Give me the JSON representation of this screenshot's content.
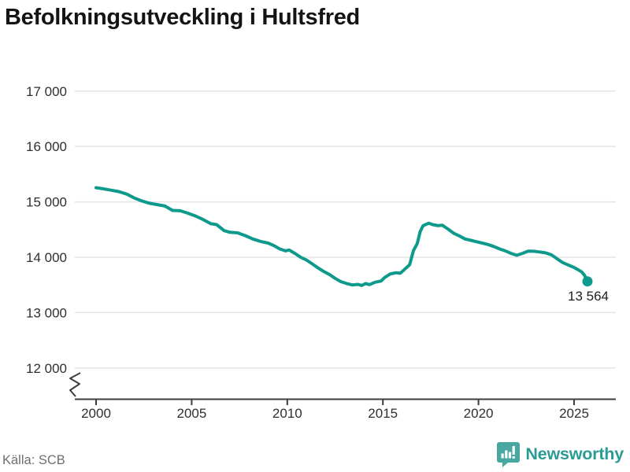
{
  "page": {
    "title": "Befolkningsutveckling i Hultsfred"
  },
  "footer": {
    "source": "Källa: SCB",
    "brand": "Newsworthy"
  },
  "colors": {
    "line": "#0d9a8c",
    "grid": "#e4e4e4",
    "axis": "#3d3d3d",
    "tick_label": "#2f2f2f",
    "end_label": "#1e1e1e",
    "brand_icon": "#48a7a0",
    "brand_text": "#2b9c95"
  },
  "chart_data": {
    "type": "line",
    "title": "Befolkningsutveckling i Hultsfred",
    "xlabel": "",
    "ylabel": "",
    "x_ticks": [
      2000,
      2005,
      2010,
      2015,
      2020,
      2025
    ],
    "x_tick_labels": [
      "2000",
      "2005",
      "2010",
      "2015",
      "2020",
      "2025"
    ],
    "y_ticks": [
      12000,
      13000,
      14000,
      15000,
      16000,
      17000
    ],
    "y_tick_labels": [
      "12 000",
      "13 000",
      "14 000",
      "15 000",
      "16 000",
      "17 000"
    ],
    "ylim": [
      11650,
      17350
    ],
    "x_range": [
      2000,
      2025.7
    ],
    "grid": "horizontal",
    "axis_break_bottom_left": true,
    "legend": "none",
    "last_value": 13564,
    "last_value_label": "13 564",
    "series": [
      {
        "name": "Befolkning i Hultsfred",
        "points": [
          [
            2000.0,
            15255
          ],
          [
            2000.4,
            15235
          ],
          [
            2000.8,
            15210
          ],
          [
            2001.2,
            15185
          ],
          [
            2001.6,
            15140
          ],
          [
            2002.0,
            15070
          ],
          [
            2002.4,
            15015
          ],
          [
            2002.8,
            14975
          ],
          [
            2003.2,
            14950
          ],
          [
            2003.6,
            14925
          ],
          [
            2004.0,
            14845
          ],
          [
            2004.4,
            14840
          ],
          [
            2004.8,
            14795
          ],
          [
            2005.2,
            14745
          ],
          [
            2005.6,
            14680
          ],
          [
            2006.0,
            14605
          ],
          [
            2006.3,
            14590
          ],
          [
            2006.7,
            14480
          ],
          [
            2007.0,
            14450
          ],
          [
            2007.4,
            14440
          ],
          [
            2007.8,
            14390
          ],
          [
            2008.2,
            14330
          ],
          [
            2008.6,
            14285
          ],
          [
            2009.0,
            14255
          ],
          [
            2009.3,
            14210
          ],
          [
            2009.6,
            14150
          ],
          [
            2009.9,
            14115
          ],
          [
            2010.1,
            14130
          ],
          [
            2010.4,
            14070
          ],
          [
            2010.7,
            14000
          ],
          [
            2011.0,
            13950
          ],
          [
            2011.3,
            13880
          ],
          [
            2011.6,
            13810
          ],
          [
            2011.9,
            13745
          ],
          [
            2012.2,
            13690
          ],
          [
            2012.5,
            13620
          ],
          [
            2012.8,
            13560
          ],
          [
            2013.1,
            13525
          ],
          [
            2013.4,
            13500
          ],
          [
            2013.7,
            13510
          ],
          [
            2013.9,
            13490
          ],
          [
            2014.1,
            13525
          ],
          [
            2014.3,
            13505
          ],
          [
            2014.6,
            13550
          ],
          [
            2014.9,
            13570
          ],
          [
            2015.1,
            13635
          ],
          [
            2015.4,
            13700
          ],
          [
            2015.7,
            13720
          ],
          [
            2015.9,
            13710
          ],
          [
            2016.1,
            13770
          ],
          [
            2016.4,
            13865
          ],
          [
            2016.6,
            14120
          ],
          [
            2016.8,
            14250
          ],
          [
            2016.95,
            14460
          ],
          [
            2017.1,
            14570
          ],
          [
            2017.4,
            14615
          ],
          [
            2017.6,
            14590
          ],
          [
            2017.9,
            14570
          ],
          [
            2018.1,
            14580
          ],
          [
            2018.4,
            14510
          ],
          [
            2018.7,
            14435
          ],
          [
            2019.0,
            14385
          ],
          [
            2019.3,
            14330
          ],
          [
            2019.6,
            14305
          ],
          [
            2019.9,
            14280
          ],
          [
            2020.2,
            14255
          ],
          [
            2020.5,
            14230
          ],
          [
            2020.8,
            14195
          ],
          [
            2021.1,
            14150
          ],
          [
            2021.4,
            14115
          ],
          [
            2021.7,
            14070
          ],
          [
            2022.0,
            14035
          ],
          [
            2022.3,
            14070
          ],
          [
            2022.6,
            14110
          ],
          [
            2022.9,
            14108
          ],
          [
            2023.2,
            14095
          ],
          [
            2023.5,
            14080
          ],
          [
            2023.8,
            14045
          ],
          [
            2024.0,
            14000
          ],
          [
            2024.2,
            13950
          ],
          [
            2024.4,
            13905
          ],
          [
            2024.7,
            13860
          ],
          [
            2025.0,
            13815
          ],
          [
            2025.2,
            13775
          ],
          [
            2025.4,
            13735
          ],
          [
            2025.55,
            13670
          ],
          [
            2025.7,
            13564
          ]
        ]
      }
    ]
  }
}
